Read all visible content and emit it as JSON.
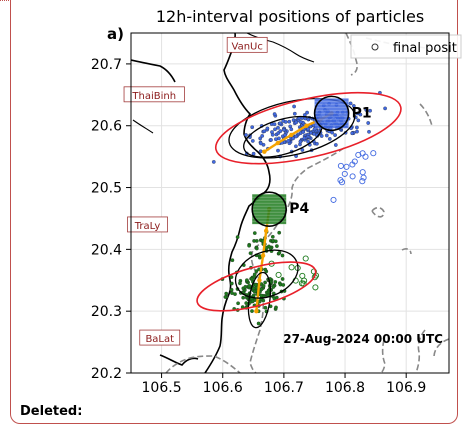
{
  "chart_data": {
    "type": "scatter",
    "panel_label": "a)",
    "title": "12h-interval positions of particles",
    "legend": {
      "label": "final posit",
      "placement": "top-right",
      "marker": "open-circle"
    },
    "timestamp": "27-Aug-2024 00:00 UTC",
    "xlim": [
      106.45,
      106.97
    ],
    "ylim": [
      20.2,
      20.75
    ],
    "x_ticks": [
      "106.5",
      "106.6",
      "106.7",
      "106.8",
      "106.9"
    ],
    "y_ticks": [
      "20.2",
      "20.3",
      "20.4",
      "20.5",
      "20.6",
      "20.7"
    ],
    "grid": true,
    "places": [
      {
        "name": "VanUc",
        "lon": 106.64,
        "lat": 20.73
      },
      {
        "name": "ThaiBinh",
        "lon": 106.488,
        "lat": 20.65
      },
      {
        "name": "TraLy",
        "lon": 106.477,
        "lat": 20.4395
      },
      {
        "name": "BaLat",
        "lon": 106.497,
        "lat": 20.2565
      }
    ],
    "releases": [
      {
        "name": "P1",
        "lon": 106.778,
        "lat": 20.62,
        "color": "#4169e1"
      },
      {
        "name": "P4",
        "lon": 106.676,
        "lat": 20.465,
        "color": "#1e7b1e"
      }
    ],
    "tracks": [
      {
        "series": "P1",
        "color": "#f5a300",
        "lon": [
          106.778,
          106.76,
          106.737,
          106.712,
          106.69,
          106.668
        ],
        "lat": [
          20.62,
          20.61,
          20.6,
          20.585,
          20.572,
          20.558
        ]
      },
      {
        "series": "P4",
        "color": "#f5a300",
        "lon": [
          106.676,
          106.671,
          106.666,
          106.66,
          106.655
        ],
        "lat": [
          20.465,
          20.43,
          20.39,
          20.35,
          20.3
        ]
      }
    ],
    "ellipses": [
      {
        "series": "P1",
        "kind": "black",
        "lon": 106.713,
        "lat": 20.596,
        "rx_deg": 0.105,
        "ry_deg": 0.043,
        "tilt_deg": -13
      },
      {
        "series": "P1",
        "kind": "black",
        "lon": 106.698,
        "lat": 20.582,
        "rx_deg": 0.066,
        "ry_deg": 0.028,
        "tilt_deg": -17
      },
      {
        "series": "P1",
        "kind": "red",
        "lon": 106.74,
        "lat": 20.596,
        "rx_deg": 0.155,
        "ry_deg": 0.047,
        "tilt_deg": -13
      },
      {
        "series": "P4",
        "kind": "black",
        "lon": 106.672,
        "lat": 20.36,
        "rx_deg": 0.053,
        "ry_deg": 0.036,
        "tilt_deg": -22
      },
      {
        "series": "P4",
        "kind": "black",
        "lon": 106.66,
        "lat": 20.318,
        "rx_deg": 0.017,
        "ry_deg": 0.045,
        "tilt_deg": 8
      },
      {
        "series": "P4",
        "kind": "red",
        "lon": 106.655,
        "lat": 20.34,
        "rx_deg": 0.1,
        "ry_deg": 0.031,
        "tilt_deg": -15
      }
    ],
    "particle_clouds": [
      {
        "series": "P1",
        "color": "#4169e1",
        "shape": "filled-dot",
        "lon": 106.74,
        "lat": 20.595,
        "spread_lon": 0.085,
        "spread_lat": 0.028,
        "tilt_deg": -13,
        "count": 240
      },
      {
        "series": "P1",
        "color": "#4169e1",
        "shape": "open-circle",
        "lon": 106.82,
        "lat": 20.53,
        "spread_lon": 0.04,
        "spread_lat": 0.02,
        "tilt_deg": -50,
        "count": 16
      },
      {
        "series": "P4",
        "color": "#1e7b1e",
        "shape": "filled-dot",
        "lon": 106.655,
        "lat": 20.335,
        "spread_lon": 0.045,
        "spread_lat": 0.03,
        "tilt_deg": -15,
        "count": 140
      },
      {
        "series": "P4",
        "color": "#1e7b1e",
        "shape": "filled-dot",
        "lon": 106.668,
        "lat": 20.41,
        "spread_lon": 0.03,
        "spread_lat": 0.02,
        "tilt_deg": 0,
        "count": 35
      },
      {
        "series": "P4",
        "color": "#1e7b1e",
        "shape": "open-circle",
        "lon": 106.73,
        "lat": 20.365,
        "spread_lon": 0.03,
        "spread_lat": 0.025,
        "tilt_deg": -30,
        "count": 14
      }
    ]
  },
  "footer": {
    "deleted_label": "Deleted:"
  }
}
